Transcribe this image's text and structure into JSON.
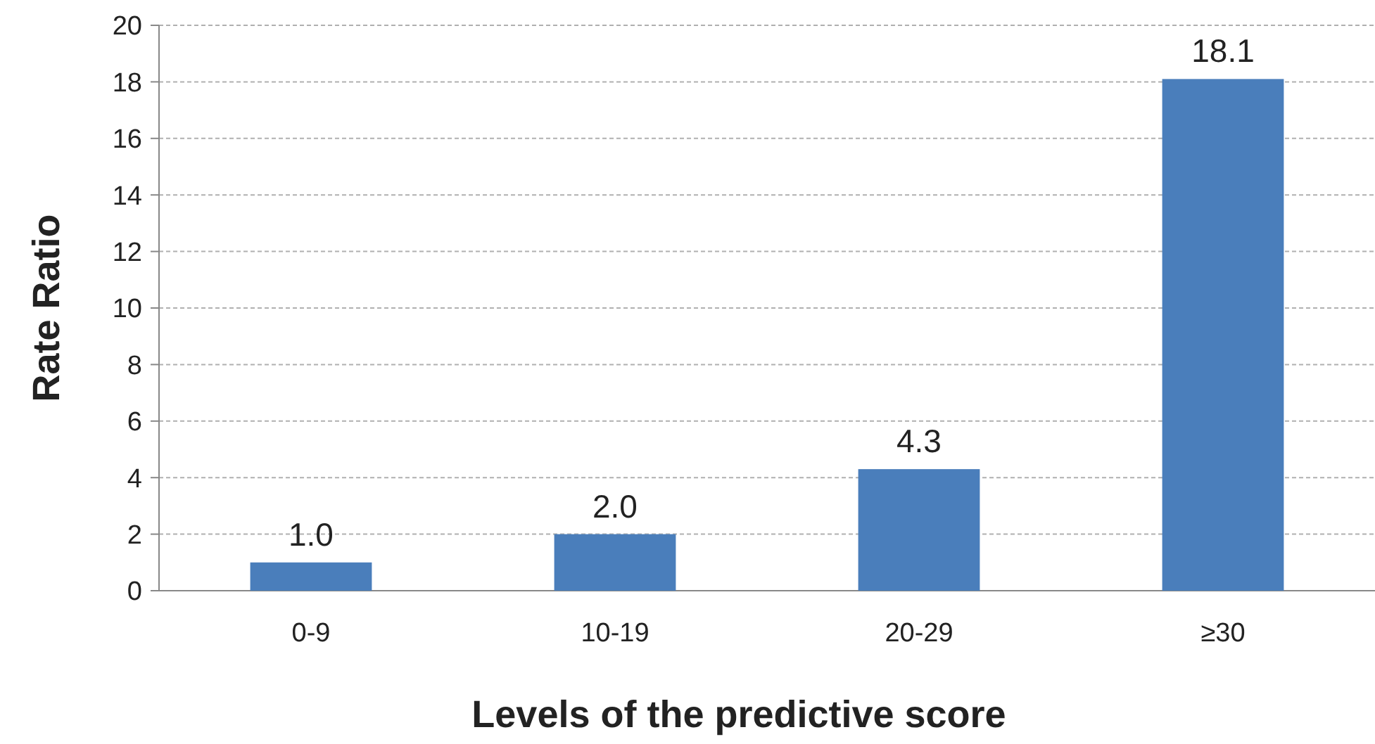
{
  "chart_data": {
    "type": "bar",
    "xlabel": "Levels of the predictive score",
    "ylabel": "Rate Ratio",
    "categories": [
      "0-9",
      "10-19",
      "20-29",
      "≥30"
    ],
    "values": [
      1.0,
      2.0,
      4.3,
      18.1
    ],
    "color": "#4a7ebb",
    "value_labels": [
      "1.0",
      "2.0",
      "4.3",
      "18.1"
    ],
    "ylim": [
      0,
      20
    ],
    "yticks": [
      0,
      2,
      4,
      6,
      8,
      10,
      12,
      14,
      16,
      18,
      20
    ],
    "grid": "y"
  }
}
